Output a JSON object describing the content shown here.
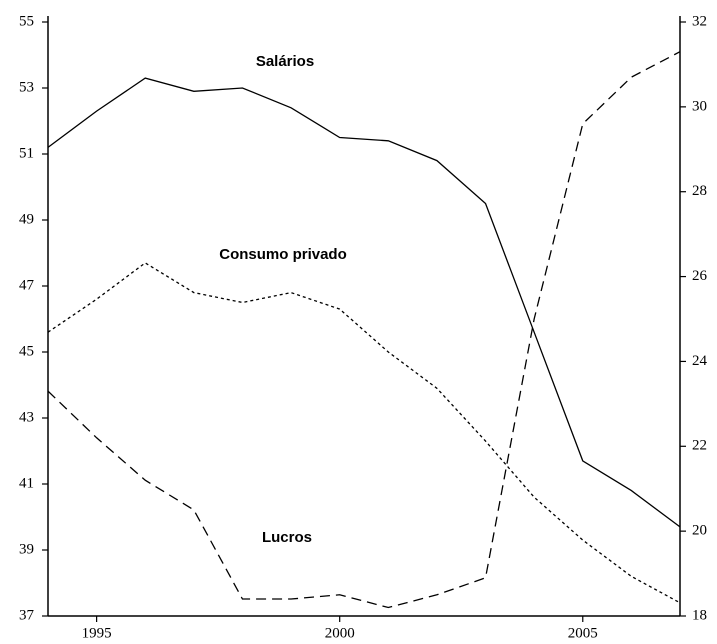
{
  "chart_data": {
    "type": "line",
    "x": [
      1994,
      1995,
      1996,
      1997,
      1998,
      1999,
      2000,
      2001,
      2002,
      2003,
      2004,
      2005,
      2006,
      2007
    ],
    "series": [
      {
        "name": "Salários",
        "color": "#000000",
        "dash": "solid",
        "values": [
          51.2,
          52.3,
          53.3,
          52.9,
          53.0,
          52.4,
          51.5,
          51.4,
          50.8,
          49.5,
          45.6,
          41.7,
          40.8,
          39.7
        ]
      },
      {
        "name": "Consumo privado",
        "color": "#000000",
        "dash": "dotted",
        "values": [
          45.6,
          46.6,
          47.7,
          46.8,
          46.5,
          46.8,
          46.3,
          45.0,
          43.9,
          42.3,
          40.6,
          39.3,
          38.2,
          37.4
        ]
      },
      {
        "name": "Lucros",
        "color": "#000000",
        "dash": "dashed",
        "axis": "y2",
        "values": [
          23.3,
          22.2,
          21.2,
          20.5,
          18.4,
          18.4,
          18.5,
          18.2,
          18.5,
          18.9,
          25.0,
          29.6,
          30.7,
          31.3
        ]
      }
    ],
    "xlim": [
      1994,
      2007
    ],
    "xticks": [
      1995,
      2000,
      2005
    ],
    "ylim": [
      37,
      55
    ],
    "yticks": [
      37,
      39,
      41,
      43,
      45,
      47,
      49,
      51,
      53,
      55
    ],
    "y2lim": [
      18,
      32
    ],
    "y2ticks": [
      18,
      20,
      22,
      24,
      26,
      28,
      30,
      32
    ]
  }
}
